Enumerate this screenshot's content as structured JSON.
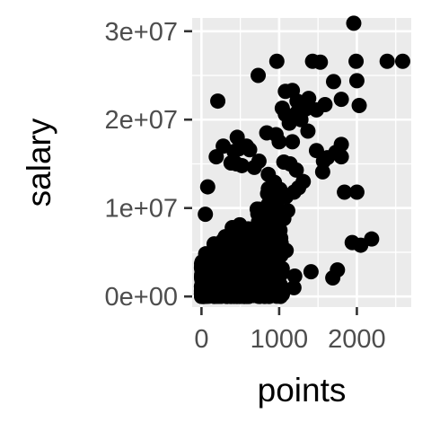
{
  "chart_data": {
    "type": "scatter",
    "xlabel": "points",
    "ylabel": "salary",
    "xlim": [
      -120,
      2700
    ],
    "ylim": [
      -1200000,
      31500000
    ],
    "x_ticks": [
      {
        "value": 0,
        "label": "0"
      },
      {
        "value": 1000,
        "label": "1000"
      },
      {
        "value": 2000,
        "label": "2000"
      }
    ],
    "y_ticks": [
      {
        "value": 0,
        "label": "0e+00"
      },
      {
        "value": 10000000,
        "label": "1e+07"
      },
      {
        "value": 20000000,
        "label": "2e+07"
      },
      {
        "value": 30000000,
        "label": "3e+07"
      }
    ],
    "x_minor": [
      500,
      1500,
      2500
    ],
    "y_minor": [
      5000000,
      15000000,
      25000000
    ],
    "grid": true,
    "colors": {
      "panel": "#ebebeb",
      "grid": "#ffffff",
      "point": "#000000",
      "tick": "#333333"
    },
    "points": [
      [
        1960,
        30900000
      ],
      [
        2390,
        26600000
      ],
      [
        2590,
        26600000
      ],
      [
        1990,
        26600000
      ],
      [
        1430,
        26600000
      ],
      [
        1530,
        26500000
      ],
      [
        970,
        26600000
      ],
      [
        1700,
        24300000
      ],
      [
        2000,
        24400000
      ],
      [
        730,
        25000000
      ],
      [
        1080,
        23200000
      ],
      [
        1170,
        23300000
      ],
      [
        1380,
        22400000
      ],
      [
        1340,
        21200000
      ],
      [
        1590,
        21700000
      ],
      [
        1800,
        22300000
      ],
      [
        1040,
        21300000
      ],
      [
        2030,
        21600000
      ],
      [
        1230,
        22100000
      ],
      [
        1260,
        21500000
      ],
      [
        210,
        22100000
      ],
      [
        1080,
        20600000
      ],
      [
        1130,
        19600000
      ],
      [
        1230,
        20800000
      ],
      [
        1480,
        21100000
      ],
      [
        1280,
        20000000
      ],
      [
        1370,
        18700000
      ],
      [
        840,
        18500000
      ],
      [
        960,
        18300000
      ],
      [
        1000,
        17500000
      ],
      [
        1170,
        17500000
      ],
      [
        1480,
        16500000
      ],
      [
        1620,
        15700000
      ],
      [
        1570,
        15300000
      ],
      [
        1800,
        15800000
      ],
      [
        1560,
        14100000
      ],
      [
        1800,
        17200000
      ],
      [
        1730,
        16300000
      ],
      [
        460,
        18000000
      ],
      [
        420,
        16400000
      ],
      [
        480,
        16700000
      ],
      [
        580,
        17000000
      ],
      [
        620,
        16600000
      ],
      [
        280,
        17000000
      ],
      [
        190,
        15800000
      ],
      [
        380,
        15100000
      ],
      [
        450,
        15000000
      ],
      [
        520,
        14800000
      ],
      [
        680,
        14600000
      ],
      [
        740,
        15300000
      ],
      [
        1060,
        15200000
      ],
      [
        1140,
        15000000
      ],
      [
        1220,
        14300000
      ],
      [
        1310,
        13000000
      ],
      [
        1250,
        12300000
      ],
      [
        860,
        13800000
      ],
      [
        940,
        12900000
      ],
      [
        1010,
        12100000
      ],
      [
        1090,
        11300000
      ],
      [
        1190,
        11800000
      ],
      [
        1840,
        11800000
      ],
      [
        2000,
        11800000
      ],
      [
        1410,
        2800000
      ],
      [
        1750,
        3000000
      ],
      [
        1690,
        2100000
      ],
      [
        1940,
        6100000
      ],
      [
        2050,
        5800000
      ],
      [
        2190,
        6500000
      ],
      [
        1190,
        1000000
      ],
      [
        1200,
        2300000
      ],
      [
        1060,
        8800000
      ],
      [
        1110,
        9700000
      ],
      [
        970,
        10400000
      ],
      [
        1020,
        6600000
      ],
      [
        1090,
        5200000
      ],
      [
        80,
        12400000
      ],
      [
        50,
        9300000
      ]
    ]
  }
}
